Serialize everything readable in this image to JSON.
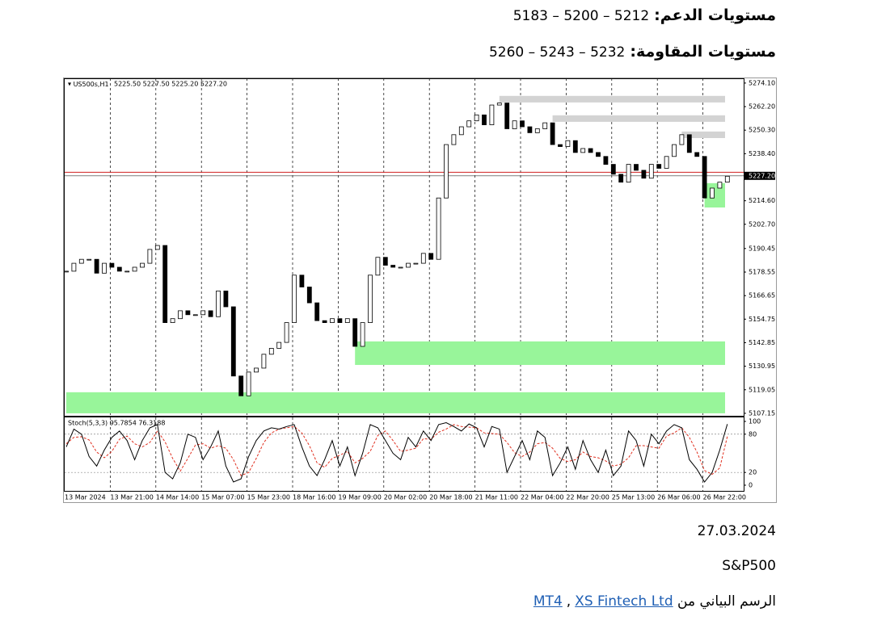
{
  "header": {
    "support_label": "مستويات الدعم:",
    "support_values": "5212 – 5200 – 5183",
    "resistance_label": "مستويات المقاومة:",
    "resistance_values": "5232 – 5243 – 5260"
  },
  "chart_data": {
    "type": "candlestick",
    "symbol": "US500s,H1",
    "ohlc_text": "5225.50 5227.50 5225.20 5227.20",
    "categories": [
      "13 Mar 2024",
      "13 Mar 21:00",
      "14 Mar 14:00",
      "15 Mar 07:00",
      "15 Mar 23:00",
      "18 Mar 16:00",
      "19 Mar 09:00",
      "20 Mar 02:00",
      "20 Mar 18:00",
      "21 Mar 11:00",
      "22 Mar 04:00",
      "22 Mar 20:00",
      "25 Mar 13:00",
      "26 Mar 06:00",
      "26 Mar 22:00"
    ],
    "closes": [
      5179,
      5183,
      5185,
      5185,
      5178,
      5183,
      5181,
      5179,
      5179,
      5181,
      5183,
      5190,
      5192,
      5153,
      5155,
      5159,
      5157,
      5157,
      5159,
      5156,
      5169,
      5161,
      5126,
      5116,
      5128,
      5130,
      5137,
      5140,
      5143,
      5153,
      5177,
      5171,
      5163,
      5154,
      5153,
      5155,
      5153,
      5155,
      5141,
      5153,
      5177,
      5186,
      5182,
      5181,
      5181,
      5183,
      5183,
      5188,
      5185,
      5216,
      5243,
      5248,
      5252,
      5255,
      5258,
      5253,
      5263,
      5264,
      5251,
      5255,
      5252,
      5249,
      5251,
      5254,
      5243,
      5242,
      5245,
      5239,
      5241,
      5239,
      5237,
      5233,
      5228,
      5224,
      5233,
      5230,
      5226,
      5233,
      5231,
      5237,
      5243,
      5248,
      5239,
      5237,
      5216,
      5221,
      5224,
      5227
    ],
    "up_color": "#ffffff",
    "down_color": "#000000",
    "ylim": [
      5105.9,
      5276.5
    ],
    "yticks": [
      {
        "value": 5274.1,
        "label": "5274.10"
      },
      {
        "value": 5262.2,
        "label": "5262.20"
      },
      {
        "value": 5250.3,
        "label": "5250.30"
      },
      {
        "value": 5238.4,
        "label": "5238.40"
      },
      {
        "value": 5214.6,
        "label": "5214.60"
      },
      {
        "value": 5202.7,
        "label": "5202.70"
      },
      5190.45,
      5178.55,
      5166.65,
      5154.75,
      5142.85,
      5130.95,
      5119.05,
      5107.15
    ],
    "last_price": {
      "value": 5227.2,
      "label": "5227.20"
    },
    "ask_price": 5229.0,
    "zones": [
      {
        "low": 5264.3,
        "high": 5267.6,
        "start": 57,
        "color": "#d3d3d3"
      },
      {
        "low": 5254.5,
        "high": 5257.8,
        "start": 64,
        "color": "#d3d3d3"
      },
      {
        "low": 5246.3,
        "high": 5249.6,
        "start": 81,
        "color": "#d3d3d3"
      },
      {
        "low": 5211.2,
        "high": 5223.5,
        "start": 84,
        "color": "#98f59a"
      },
      {
        "low": 5131.6,
        "high": 5143.5,
        "start": 38,
        "color": "#98f59a"
      },
      {
        "low": 5107.15,
        "high": 5117.8,
        "start": 0,
        "color": "#98f59a"
      }
    ],
    "stochastic": {
      "label": "Stoch(5,3,3) 95.7854 76.3188",
      "k": [
        60,
        88,
        80,
        45,
        30,
        55,
        75,
        85,
        70,
        40,
        70,
        90,
        95,
        20,
        10,
        35,
        80,
        75,
        40,
        60,
        85,
        30,
        5,
        10,
        45,
        70,
        85,
        90,
        88,
        92,
        95,
        60,
        30,
        15,
        40,
        70,
        30,
        60,
        15,
        50,
        95,
        90,
        70,
        50,
        40,
        75,
        60,
        85,
        70,
        95,
        98,
        92,
        85,
        96,
        90,
        60,
        92,
        88,
        20,
        45,
        70,
        40,
        85,
        75,
        15,
        35,
        60,
        25,
        70,
        40,
        20,
        55,
        15,
        30,
        85,
        70,
        30,
        80,
        65,
        85,
        95,
        90,
        40,
        25,
        5,
        20,
        55,
        95.7854
      ],
      "d": [
        65,
        75,
        76,
        71,
        52,
        43,
        53,
        72,
        77,
        65,
        60,
        67,
        85,
        68,
        42,
        22,
        42,
        63,
        65,
        58,
        62,
        58,
        40,
        15,
        20,
        42,
        67,
        82,
        88,
        90,
        92,
        82,
        62,
        35,
        28,
        42,
        47,
        53,
        35,
        42,
        53,
        78,
        85,
        70,
        53,
        55,
        58,
        73,
        72,
        83,
        88,
        95,
        92,
        91,
        90,
        82,
        81,
        80,
        67,
        51,
        45,
        52,
        65,
        67,
        58,
        42,
        37,
        40,
        52,
        45,
        43,
        38,
        30,
        33,
        43,
        62,
        62,
        60,
        58,
        77,
        82,
        90,
        75,
        52,
        23,
        17,
        27,
        76.3188
      ],
      "k_color": "#000000",
      "d_color": "#e03020",
      "ylim": [
        -8.9,
        106.3
      ],
      "yticks": [
        100,
        80,
        20,
        0
      ],
      "levels": [
        80,
        20
      ]
    }
  },
  "footer": {
    "date": "27.03.2024",
    "instrument": "S&P500",
    "source_prefix": "الرسم البياني من",
    "links": [
      "MT4",
      "XS Fintech Ltd"
    ],
    "separator": ","
  }
}
